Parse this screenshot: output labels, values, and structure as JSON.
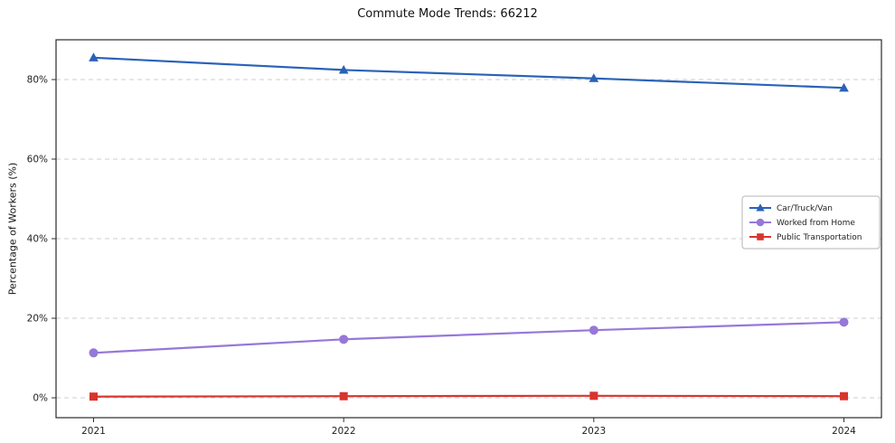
{
  "chart_data": {
    "type": "line",
    "title": "Commute Mode Trends: 66212",
    "xlabel": "",
    "ylabel": "Percentage of Workers (%)",
    "x": [
      2021,
      2022,
      2023,
      2024
    ],
    "categories": [
      "2021",
      "2022",
      "2023",
      "2024"
    ],
    "series": [
      {
        "name": "Car/Truck/Van",
        "values": [
          85.5,
          82.4,
          80.3,
          77.9
        ],
        "color": "#2a62b8",
        "marker": "triangle"
      },
      {
        "name": "Worked from Home",
        "values": [
          11.3,
          14.7,
          17.0,
          19.0
        ],
        "color": "#9678d8",
        "marker": "circle"
      },
      {
        "name": "Public Transportation",
        "values": [
          0.3,
          0.4,
          0.5,
          0.4
        ],
        "color": "#d9342e",
        "marker": "square"
      }
    ],
    "ylim": [
      -5,
      90
    ],
    "yticks": [
      0,
      20,
      40,
      60,
      80
    ],
    "ytick_labels": [
      "0%",
      "20%",
      "40%",
      "60%",
      "80%"
    ],
    "grid": true,
    "grid_style": "dashed",
    "grid_color": "#cccccc",
    "legend_position": "center right"
  }
}
